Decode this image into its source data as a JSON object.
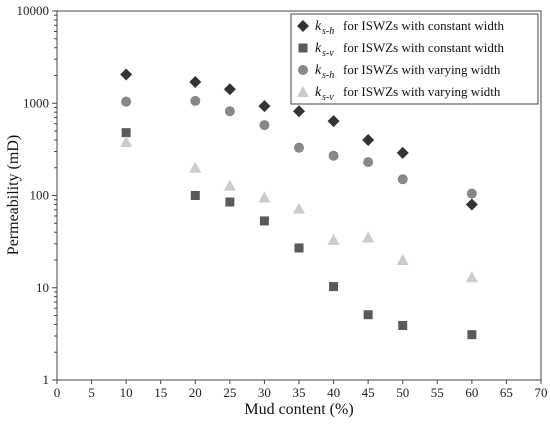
{
  "chart_data": {
    "type": "scatter",
    "xlabel": "Mud content (%)",
    "ylabel": "Permeability (mD)",
    "xlim": [
      0,
      70
    ],
    "ylim": [
      1,
      10000
    ],
    "yscale": "log",
    "x_ticks": [
      0,
      5,
      10,
      15,
      20,
      25,
      30,
      35,
      40,
      45,
      50,
      55,
      60,
      65,
      70
    ],
    "y_ticks": [
      1,
      10,
      100,
      1000,
      10000
    ],
    "grid": false,
    "legend_position": "top-right",
    "series": [
      {
        "symbol": "k",
        "subscript": "s-h",
        "name": "for ISWZs with constant width",
        "marker": "diamond",
        "color": "#333333",
        "x": [
          10,
          20,
          25,
          30,
          35,
          40,
          45,
          50,
          60
        ],
        "y": [
          2050,
          1700,
          1420,
          930,
          820,
          640,
          400,
          290,
          80
        ]
      },
      {
        "symbol": "k",
        "subscript": "s-v",
        "name": "for ISWZs with constant width",
        "marker": "square",
        "color": "#5a5a5a",
        "x": [
          10,
          20,
          25,
          30,
          35,
          40,
          45,
          50,
          60
        ],
        "y": [
          480,
          100,
          85,
          53,
          27,
          10.3,
          5.1,
          3.9,
          3.1
        ]
      },
      {
        "symbol": "k",
        "subscript": "s-h",
        "name": "for ISWZs with varying width",
        "marker": "circle",
        "color": "#888888",
        "x": [
          10,
          20,
          25,
          30,
          35,
          40,
          45,
          50,
          60
        ],
        "y": [
          1040,
          1060,
          820,
          580,
          330,
          270,
          230,
          150,
          105
        ]
      },
      {
        "symbol": "k",
        "subscript": "s-v",
        "name": "for ISWZs with varying width",
        "marker": "triangle",
        "color": "#cccccc",
        "x": [
          10,
          20,
          25,
          30,
          35,
          40,
          45,
          50,
          60
        ],
        "y": [
          380,
          200,
          128,
          95,
          72,
          33,
          35,
          20,
          13
        ]
      }
    ]
  }
}
